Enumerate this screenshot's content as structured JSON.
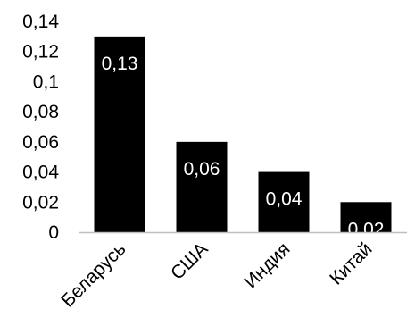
{
  "chart_data": {
    "type": "bar",
    "categories": [
      "Беларусь",
      "США",
      "Индия",
      "Китай"
    ],
    "values": [
      0.13,
      0.06,
      0.04,
      0.02
    ],
    "value_labels": [
      "0,13",
      "0,06",
      "0,04",
      "0,02"
    ],
    "y_ticks": [
      0,
      0.02,
      0.04,
      0.06,
      0.08,
      0.1,
      0.12,
      0.14
    ],
    "y_tick_labels": [
      "0",
      "0,02",
      "0,04",
      "0,06",
      "0,08",
      "0,1",
      "0,12",
      "0,14"
    ],
    "ylim": [
      0,
      0.14
    ],
    "grid": false,
    "legend": "none",
    "bar_color": "#000000",
    "axis_color": "#bfbfbf",
    "data_label_color": "#ffffff",
    "title": "",
    "xlabel": "",
    "ylabel": ""
  }
}
